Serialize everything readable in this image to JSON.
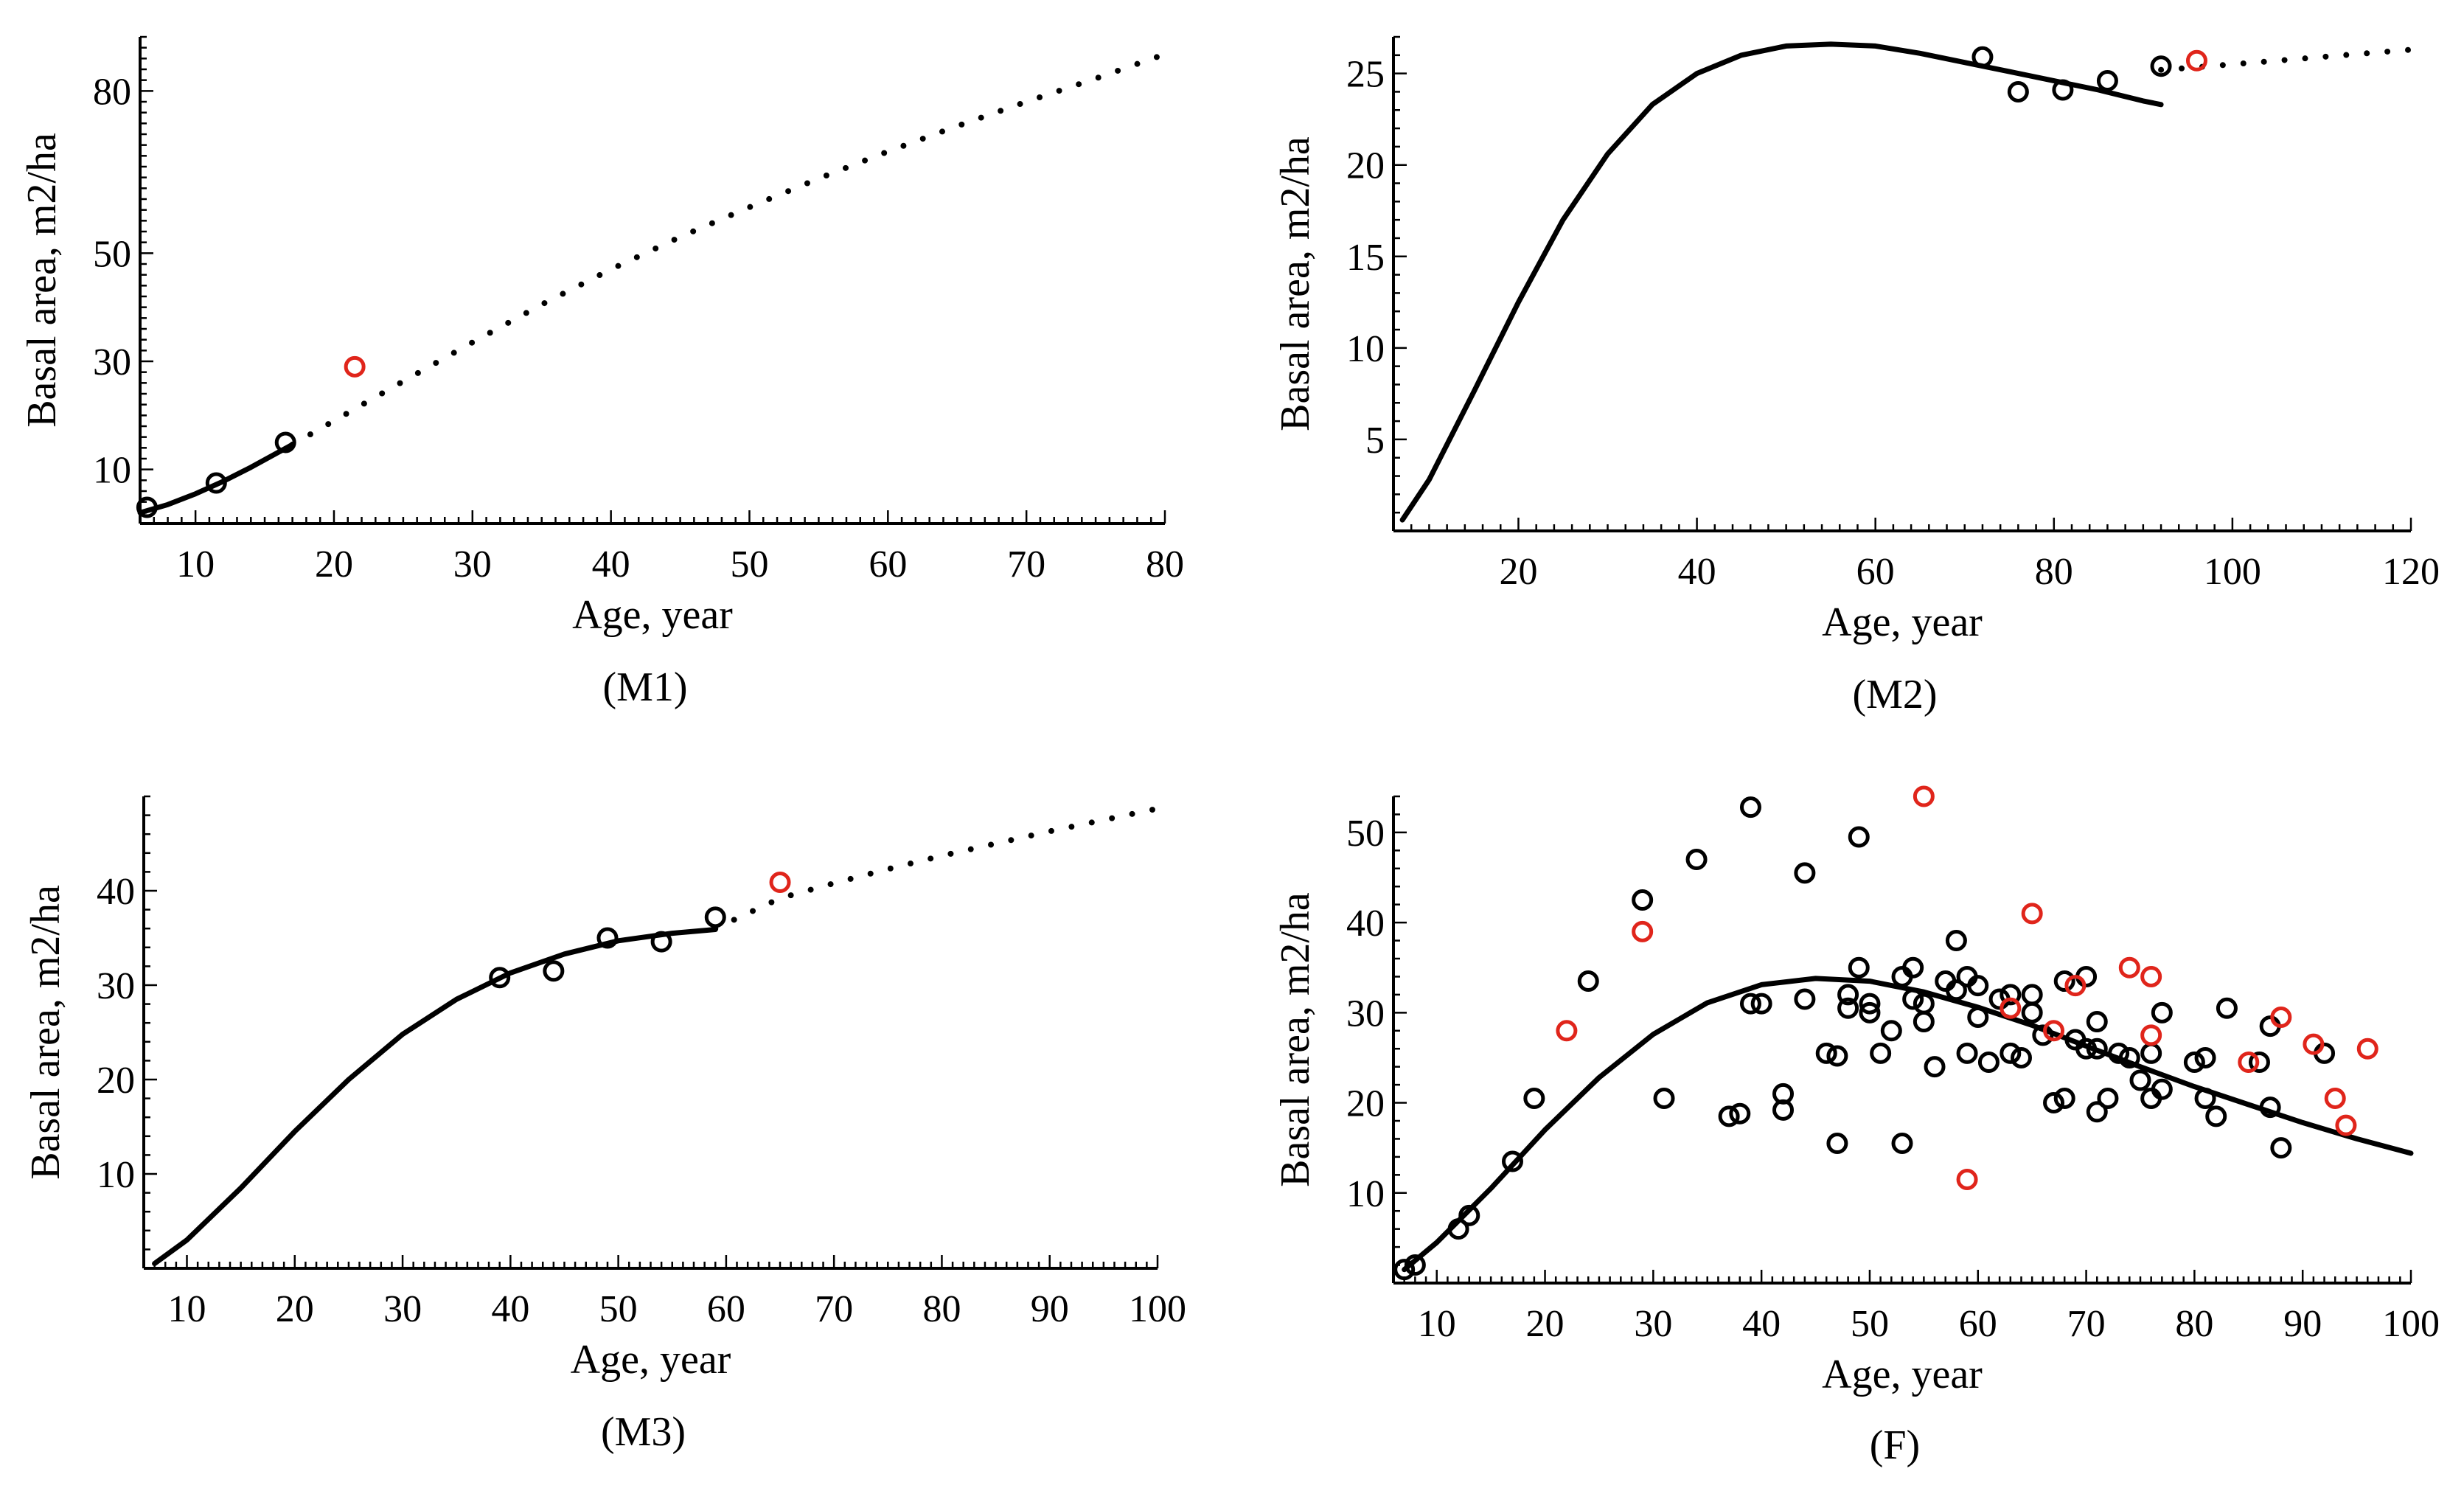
{
  "colors": {
    "observed": "#000000",
    "validation": "#e0251b",
    "curve": "#000000"
  },
  "chart_data": [
    {
      "id": "M1",
      "type": "scatter",
      "caption": "(M1)",
      "xlabel": "Age, year",
      "ylabel": "Basal area, m2/ha",
      "xlim": [
        6,
        80
      ],
      "ylim": [
        0,
        90
      ],
      "xticks": [
        10,
        20,
        30,
        40,
        50,
        60,
        70,
        80
      ],
      "yticks": [
        10,
        30,
        50,
        80
      ],
      "ymajor_labeled_only": true,
      "fit_curve": {
        "x": [
          6,
          8,
          10,
          12,
          14,
          16,
          17
        ],
        "y": [
          2.0,
          3.5,
          5.5,
          7.8,
          10.4,
          13.2,
          14.6
        ]
      },
      "extrapolation": {
        "x": [
          17,
          20,
          25,
          30,
          35,
          40,
          45,
          50,
          55,
          60,
          65,
          70,
          75,
          80
        ],
        "y": [
          14.6,
          19.0,
          26.3,
          33.5,
          40.5,
          47.0,
          53.0,
          58.5,
          63.8,
          68.8,
          73.5,
          78.0,
          82.3,
          86.8
        ]
      },
      "observed": {
        "x": [
          6.5,
          11.5,
          16.5
        ],
        "y": [
          3.0,
          7.5,
          15.0
        ]
      },
      "validation": {
        "x": [
          21.5
        ],
        "y": [
          29.0
        ]
      }
    },
    {
      "id": "M2",
      "type": "scatter",
      "caption": "(M2)",
      "xlabel": "Age, year",
      "ylabel": "Basal area, m2/ha",
      "xlim": [
        6,
        120
      ],
      "ylim": [
        0,
        27
      ],
      "xticks": [
        20,
        40,
        60,
        80,
        100,
        120
      ],
      "yticks": [
        5,
        10,
        15,
        20,
        25
      ],
      "fit_curve": {
        "x": [
          7,
          10,
          15,
          20,
          25,
          30,
          35,
          40,
          45,
          50,
          55,
          60,
          65,
          70,
          75,
          80,
          85,
          90,
          92
        ],
        "y": [
          0.6,
          2.8,
          7.6,
          12.5,
          17.0,
          20.6,
          23.3,
          25.0,
          26.0,
          26.5,
          26.6,
          26.5,
          26.1,
          25.6,
          25.1,
          24.6,
          24.1,
          23.5,
          23.3
        ]
      },
      "extrapolation": {
        "x": [
          92,
          95,
          100,
          105,
          110,
          115,
          120
        ],
        "y": [
          25.2,
          25.3,
          25.5,
          25.7,
          25.9,
          26.1,
          26.3
        ]
      },
      "observed": {
        "x": [
          72,
          76,
          81,
          86,
          92
        ],
        "y": [
          25.9,
          24.0,
          24.1,
          24.6,
          25.4
        ]
      },
      "validation": {
        "x": [
          96
        ],
        "y": [
          25.7
        ]
      }
    },
    {
      "id": "M3",
      "type": "scatter",
      "caption": "(M3)",
      "xlabel": "Age, year",
      "ylabel": "Basal area, m2/ha",
      "xlim": [
        6,
        100
      ],
      "ylim": [
        0,
        50
      ],
      "xticks": [
        10,
        20,
        30,
        40,
        50,
        60,
        70,
        80,
        90,
        100
      ],
      "yticks": [
        10,
        20,
        30,
        40
      ],
      "fit_curve": {
        "x": [
          7,
          10,
          15,
          20,
          25,
          30,
          35,
          40,
          45,
          50,
          55,
          59
        ],
        "y": [
          0.5,
          3.0,
          8.5,
          14.5,
          20.0,
          24.8,
          28.5,
          31.3,
          33.3,
          34.7,
          35.5,
          35.9
        ]
      },
      "extrapolation": {
        "x": [
          59,
          65,
          70,
          75,
          80,
          85,
          90,
          95,
          100
        ],
        "y": [
          36.0,
          39.2,
          40.8,
          42.3,
          43.7,
          45.0,
          46.3,
          47.5,
          48.7
        ]
      },
      "observed": {
        "x": [
          39,
          44,
          49,
          54,
          59
        ],
        "y": [
          30.8,
          31.5,
          35.0,
          34.6,
          37.2
        ]
      },
      "validation": {
        "x": [
          65
        ],
        "y": [
          40.9
        ]
      }
    },
    {
      "id": "F",
      "type": "scatter",
      "caption": "(F)",
      "xlabel": "Age, year",
      "ylabel": "Basal area, m2/ha",
      "xlim": [
        6,
        100
      ],
      "ylim": [
        0,
        54
      ],
      "xticks": [
        10,
        20,
        30,
        40,
        50,
        60,
        70,
        80,
        90,
        100
      ],
      "yticks": [
        10,
        20,
        30,
        40,
        50
      ],
      "fit_curve": {
        "x": [
          7,
          10,
          15,
          20,
          25,
          30,
          35,
          40,
          45,
          50,
          55,
          60,
          65,
          70,
          75,
          80,
          85,
          90,
          95,
          100
        ],
        "y": [
          1.5,
          4.5,
          10.5,
          17.0,
          22.8,
          27.6,
          31.1,
          33.1,
          33.8,
          33.5,
          32.3,
          30.6,
          28.6,
          26.3,
          24.0,
          21.8,
          19.8,
          17.8,
          16.0,
          14.4
        ]
      },
      "observed": {
        "x": [
          7,
          8,
          12,
          13,
          17,
          19,
          24,
          29,
          31,
          34,
          37,
          38,
          39,
          39,
          40,
          42,
          42,
          44,
          44,
          46,
          47,
          47,
          48,
          48,
          49,
          49,
          50,
          50,
          51,
          52,
          53,
          53,
          54,
          54,
          55,
          55,
          56,
          57,
          58,
          58,
          59,
          59,
          60,
          60,
          61,
          62,
          63,
          63,
          64,
          65,
          65,
          66,
          67,
          68,
          68,
          69,
          70,
          70,
          71,
          71,
          71,
          72,
          73,
          74,
          75,
          76,
          76,
          77,
          77,
          80,
          81,
          81,
          82,
          83,
          86,
          87,
          87,
          88,
          92
        ],
        "y": [
          1.5,
          2.0,
          6.0,
          7.5,
          13.5,
          20.5,
          33.5,
          42.5,
          20.5,
          47.0,
          18.5,
          18.8,
          52.8,
          31.0,
          31.0,
          21.0,
          19.2,
          45.5,
          31.5,
          25.5,
          25.2,
          15.5,
          30.5,
          32.0,
          49.5,
          35.0,
          30.0,
          31.0,
          25.5,
          28.0,
          34.0,
          15.5,
          31.5,
          35.0,
          31.0,
          29.0,
          24.0,
          33.5,
          32.5,
          38.0,
          34.0,
          25.5,
          29.5,
          33.0,
          24.5,
          31.5,
          32.0,
          25.5,
          25.0,
          32.0,
          30.0,
          27.5,
          20.0,
          33.5,
          20.5,
          27.0,
          34.0,
          26.0,
          19.0,
          29.0,
          26.0,
          20.5,
          25.5,
          25.0,
          22.5,
          20.5,
          25.5,
          30.0,
          21.5,
          24.5,
          20.5,
          25.0,
          18.5,
          30.5,
          24.5,
          28.5,
          19.5,
          15.0,
          25.5
        ]
      },
      "validation": {
        "x": [
          22,
          29,
          55,
          59,
          63,
          65,
          67,
          69,
          74,
          76,
          76,
          85,
          88,
          91,
          93,
          94,
          96
        ],
        "y": [
          28.0,
          39.0,
          54.0,
          11.5,
          30.5,
          41.0,
          28.0,
          33.0,
          35.0,
          34.0,
          27.5,
          24.5,
          29.5,
          26.5,
          20.5,
          17.5,
          26.0
        ]
      }
    }
  ]
}
